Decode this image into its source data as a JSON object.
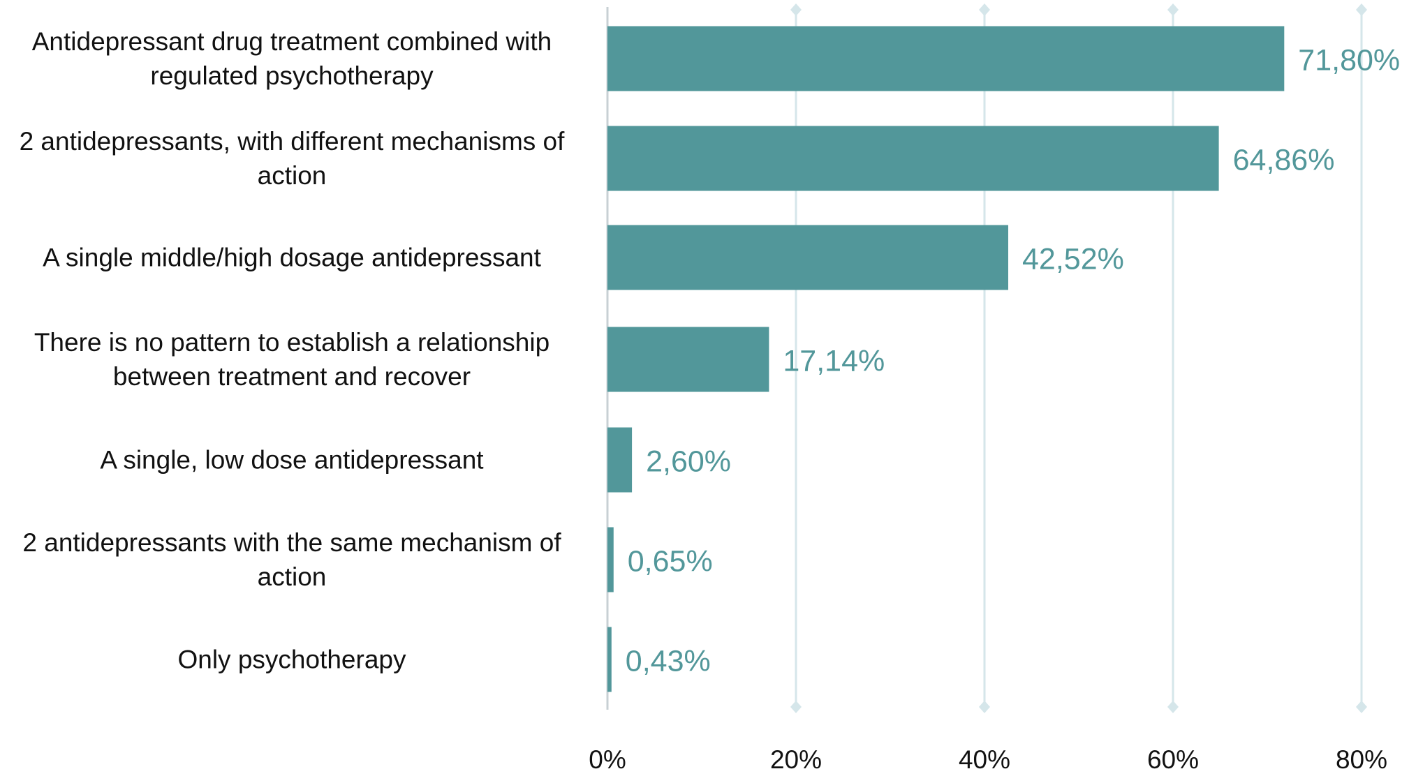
{
  "chart_data": {
    "type": "hbar",
    "categories": [
      "Antidepressant drug treatment combined with regulated psychotherapy",
      "2 antidepressants, with different mechanisms of action",
      "A single middle/high dosage antidepressant",
      "There is no pattern to establish a relationship between treatment and recover",
      "A single, low dose antidepressant",
      "2 antidepressants with the same mechanism of action",
      "Only psychotherapy"
    ],
    "values": [
      71.8,
      64.86,
      42.52,
      17.14,
      2.6,
      0.65,
      0.43
    ],
    "value_labels": [
      "71,80%",
      "64,86%",
      "42,52%",
      "17,14%",
      "2,60%",
      "0,65%",
      "0,43%"
    ],
    "color": "#52979a",
    "xlim": [
      0,
      80
    ],
    "xticks": [
      {
        "value": 0,
        "label": "0%"
      },
      {
        "value": 20,
        "label": "20%"
      },
      {
        "value": 40,
        "label": "40%"
      },
      {
        "value": 60,
        "label": "60%"
      },
      {
        "value": 80,
        "label": "80%"
      }
    ],
    "grid": true
  }
}
